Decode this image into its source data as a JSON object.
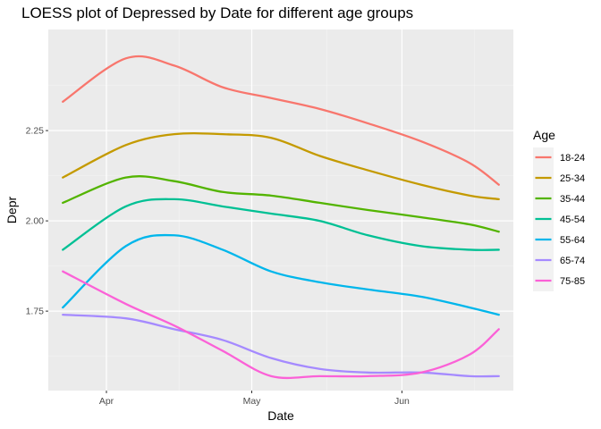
{
  "chart_data": {
    "type": "line",
    "title": "LOESS plot of Depressed by Date for different age groups",
    "xlabel": "Date",
    "ylabel": "Depr",
    "x_tick_labels": [
      "Apr",
      "May",
      "Jun"
    ],
    "x_tick_days": [
      0,
      30,
      61
    ],
    "x": [
      "Mar 23",
      "Apr 5",
      "Apr 15",
      "Apr 25",
      "May 5",
      "May 15",
      "May 25",
      "Jun 5",
      "Jun 15",
      "Jun 21"
    ],
    "x_days": [
      -9,
      4,
      14,
      24,
      34,
      44,
      54,
      65,
      75,
      81
    ],
    "ylim": [
      1.53,
      2.53
    ],
    "yticks": [
      1.75,
      2.0,
      2.25
    ],
    "ytick_labels": [
      "1.75",
      "2.00",
      "2.25"
    ],
    "legend_title": "Age",
    "legend_position": "right",
    "grid": true,
    "background_color": "#ebebeb",
    "series": [
      {
        "name": "18-24",
        "color": "#F8766D",
        "values": [
          2.33,
          2.45,
          2.43,
          2.37,
          2.34,
          2.31,
          2.27,
          2.22,
          2.16,
          2.1
        ]
      },
      {
        "name": "25-34",
        "color": "#C49A00",
        "values": [
          2.12,
          2.21,
          2.24,
          2.24,
          2.23,
          2.18,
          2.14,
          2.1,
          2.07,
          2.06
        ]
      },
      {
        "name": "35-44",
        "color": "#53B400",
        "values": [
          2.05,
          2.12,
          2.11,
          2.08,
          2.07,
          2.05,
          2.03,
          2.01,
          1.99,
          1.97
        ]
      },
      {
        "name": "45-54",
        "color": "#00C094",
        "values": [
          1.92,
          2.04,
          2.06,
          2.04,
          2.02,
          2.0,
          1.96,
          1.93,
          1.92,
          1.92
        ]
      },
      {
        "name": "55-64",
        "color": "#00B6EB",
        "values": [
          1.76,
          1.93,
          1.96,
          1.92,
          1.86,
          1.83,
          1.81,
          1.79,
          1.76,
          1.74
        ]
      },
      {
        "name": "65-74",
        "color": "#A58AFF",
        "values": [
          1.74,
          1.73,
          1.7,
          1.67,
          1.62,
          1.59,
          1.58,
          1.58,
          1.57,
          1.57
        ]
      },
      {
        "name": "75-85",
        "color": "#FB61D7",
        "values": [
          1.86,
          1.77,
          1.71,
          1.64,
          1.57,
          1.57,
          1.57,
          1.58,
          1.63,
          1.7
        ]
      }
    ]
  }
}
